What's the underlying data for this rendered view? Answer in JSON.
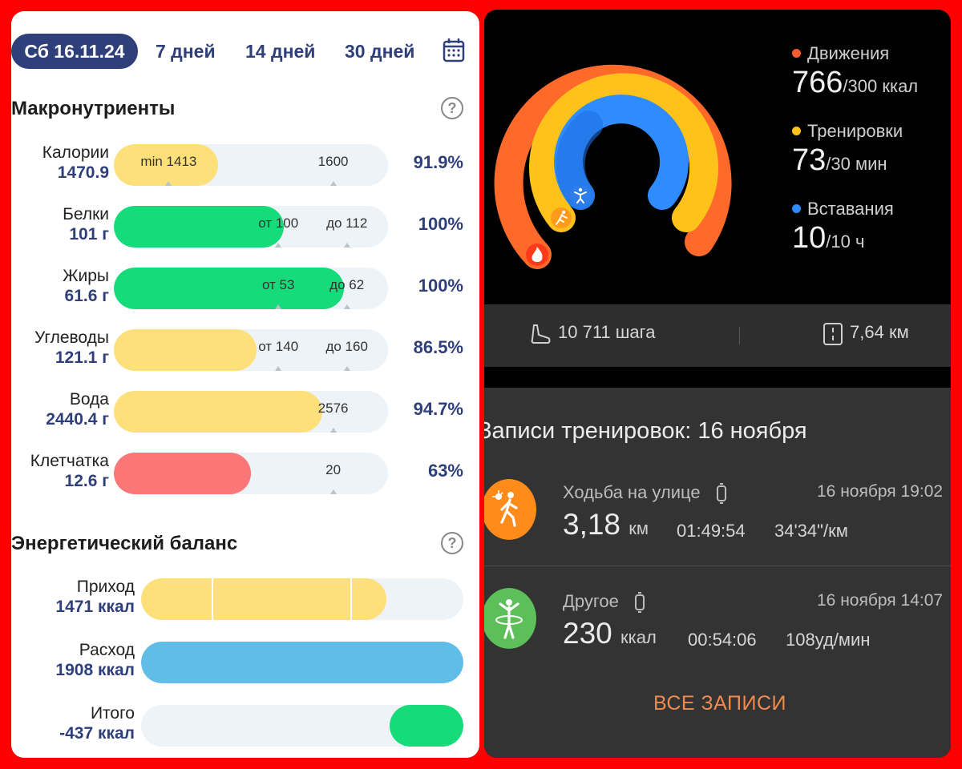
{
  "nutrition": {
    "tabs": [
      "Сб 16.11.24",
      "7 дней",
      "14 дней",
      "30 дней"
    ],
    "macros_title": "Макронутриенты",
    "macros": [
      {
        "name": "Калории",
        "value": "1470.9",
        "percent": "91.9%",
        "fill_fraction": 0.38,
        "color": "#fde07a",
        "ticks": [
          {
            "label": "min 1413",
            "pos": 0.2
          },
          {
            "label": "1600",
            "pos": 0.8
          }
        ]
      },
      {
        "name": "Белки",
        "value": "101 г",
        "percent": "100%",
        "fill_fraction": 0.62,
        "color": "#16db7a",
        "ticks": [
          {
            "label": "от 100",
            "pos": 0.6
          },
          {
            "label": "до 112",
            "pos": 0.85
          }
        ]
      },
      {
        "name": "Жиры",
        "value": "61.6 г",
        "percent": "100%",
        "fill_fraction": 0.84,
        "color": "#16db7a",
        "ticks": [
          {
            "label": "от 53",
            "pos": 0.6
          },
          {
            "label": "до 62",
            "pos": 0.85
          }
        ]
      },
      {
        "name": "Углеводы",
        "value": "121.1 г",
        "percent": "86.5%",
        "fill_fraction": 0.52,
        "color": "#fde07a",
        "ticks": [
          {
            "label": "от 140",
            "pos": 0.6
          },
          {
            "label": "до 160",
            "pos": 0.85
          }
        ]
      },
      {
        "name": "Вода",
        "value": "2440.4 г",
        "percent": "94.7%",
        "fill_fraction": 0.76,
        "color": "#fde07a",
        "ticks": [
          {
            "label": "2576",
            "pos": 0.8
          }
        ]
      },
      {
        "name": "Клетчатка",
        "value": "12.6 г",
        "percent": "63%",
        "fill_fraction": 0.5,
        "color": "#fb7677",
        "ticks": [
          {
            "label": "20",
            "pos": 0.8
          }
        ]
      }
    ],
    "energy_title": "Энергетический баланс",
    "energy": [
      {
        "name": "Приход",
        "value": "1471 ккал",
        "fill_start": 0.0,
        "fill_end": 0.76,
        "color": "#fde07a",
        "segments": [
          0.22,
          0.65
        ]
      },
      {
        "name": "Расход",
        "value": "1908 ккал",
        "fill_start": 0.0,
        "fill_end": 1.0,
        "color": "#5fbde8",
        "segments": []
      },
      {
        "name": "Итого",
        "value": "-437 ккал",
        "fill_start": 0.77,
        "fill_end": 1.0,
        "color": "#16db7a",
        "segments": []
      }
    ]
  },
  "activity": {
    "legend": [
      {
        "label": "Движения",
        "value": "766",
        "target": "/300 ккал",
        "color": "#ff5a2b"
      },
      {
        "label": "Тренировки",
        "value": "73",
        "target": "/30 мин",
        "color": "#ffc21a"
      },
      {
        "label": "Вставания",
        "value": "10",
        "target": "/10 ч",
        "color": "#2e8cff"
      }
    ],
    "steps": "10 711",
    "steps_unit": "шага",
    "distance": "7,64",
    "distance_unit": "км"
  },
  "workouts": {
    "title": "Записи тренировок: 16 ноября",
    "items": [
      {
        "name": "Ходьба на улице",
        "date": "16 ноября 19:02",
        "main_value": "3,18",
        "main_unit": "км",
        "stat1": "01:49:54",
        "stat2": "34'34\"/км",
        "icon_color": "#ff8c1a",
        "icon": "walking-icon"
      },
      {
        "name": "Другое",
        "date": "16 ноября 14:07",
        "main_value": "230",
        "main_unit": "ккал",
        "stat1": "00:54:06",
        "stat2": "108уд/мин",
        "icon_color": "#5dbf5a",
        "icon": "hula-hoop-icon"
      }
    ],
    "all_button": "ВСЕ ЗАПИСИ"
  }
}
